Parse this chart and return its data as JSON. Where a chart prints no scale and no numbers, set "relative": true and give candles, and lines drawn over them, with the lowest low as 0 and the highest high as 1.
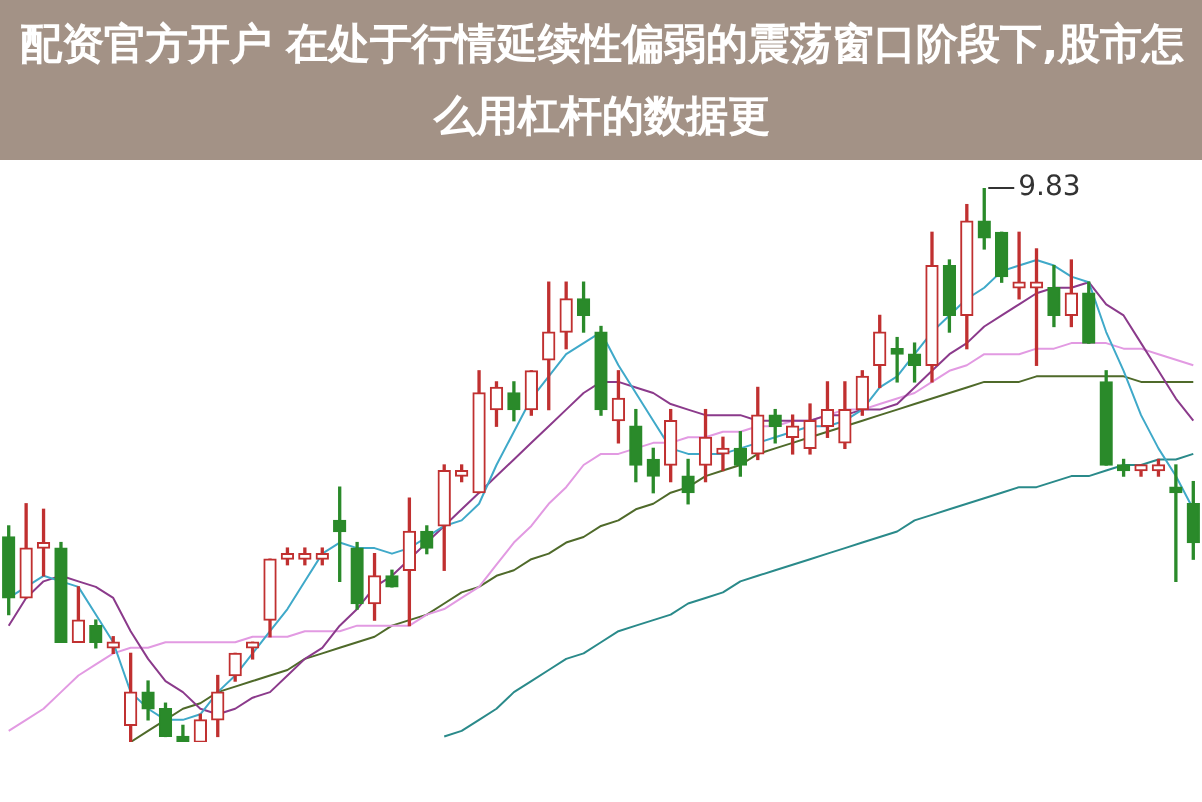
{
  "chart_data": {
    "type": "candlestick",
    "relative": true,
    "title": "配资官方开户 在处于行情延续性偏弱的震荡窗口阶段下,股市怎么用杠杆的数据更",
    "categories": [
      null,
      null,
      null,
      null,
      null,
      null,
      null,
      null,
      null,
      null,
      null,
      null,
      null,
      null,
      null,
      null,
      null,
      null,
      null,
      null,
      null,
      null,
      null,
      null,
      null,
      null,
      null,
      null,
      null,
      null,
      null,
      null,
      null,
      null,
      null,
      null,
      null,
      null,
      null,
      null,
      null,
      null,
      null,
      null,
      null,
      null,
      null,
      null,
      null,
      null,
      null,
      null,
      null,
      null,
      null,
      null,
      null,
      null,
      null,
      null,
      null,
      null,
      null,
      null,
      null,
      null,
      null,
      null,
      null
    ],
    "ohlc": [
      [
        0.37,
        0.39,
        0.23,
        0.26
      ],
      [
        0.26,
        0.43,
        0.26,
        0.35
      ],
      [
        0.35,
        0.42,
        0.3,
        0.36
      ],
      [
        0.35,
        0.36,
        0.18,
        0.18
      ],
      [
        0.18,
        0.28,
        0.18,
        0.22
      ],
      [
        0.21,
        0.22,
        0.17,
        0.18
      ],
      [
        0.17,
        0.19,
        0.16,
        0.18
      ],
      [
        0.03,
        0.16,
        0.0,
        0.09
      ],
      [
        0.09,
        0.11,
        0.04,
        0.06
      ],
      [
        0.06,
        0.07,
        0.01,
        0.01
      ],
      [
        0.01,
        0.03,
        0.0,
        0.0
      ],
      [
        0.0,
        0.05,
        0.0,
        0.04
      ],
      [
        0.04,
        0.12,
        0.01,
        0.09
      ],
      [
        0.12,
        0.16,
        0.11,
        0.16
      ],
      [
        0.17,
        0.18,
        0.15,
        0.18
      ],
      [
        0.22,
        0.33,
        0.19,
        0.33
      ],
      [
        0.33,
        0.35,
        0.32,
        0.34
      ],
      [
        0.33,
        0.35,
        0.32,
        0.34
      ],
      [
        0.33,
        0.35,
        0.32,
        0.34
      ],
      [
        0.4,
        0.46,
        0.29,
        0.38
      ],
      [
        0.35,
        0.36,
        0.24,
        0.25
      ],
      [
        0.25,
        0.34,
        0.22,
        0.3
      ],
      [
        0.3,
        0.31,
        0.28,
        0.28
      ],
      [
        0.31,
        0.44,
        0.21,
        0.38
      ],
      [
        0.38,
        0.39,
        0.34,
        0.35
      ],
      [
        0.39,
        0.5,
        0.31,
        0.49
      ],
      [
        0.48,
        0.5,
        0.47,
        0.49
      ],
      [
        0.45,
        0.67,
        0.45,
        0.63
      ],
      [
        0.6,
        0.65,
        0.57,
        0.64
      ],
      [
        0.63,
        0.65,
        0.58,
        0.6
      ],
      [
        0.6,
        0.67,
        0.59,
        0.67
      ],
      [
        0.69,
        0.83,
        0.6,
        0.74
      ],
      [
        0.74,
        0.83,
        0.71,
        0.8
      ],
      [
        0.8,
        0.83,
        0.74,
        0.77
      ],
      [
        0.74,
        0.75,
        0.59,
        0.6
      ],
      [
        0.58,
        0.67,
        0.54,
        0.62
      ],
      [
        0.57,
        0.6,
        0.47,
        0.5
      ],
      [
        0.51,
        0.53,
        0.45,
        0.48
      ],
      [
        0.5,
        0.6,
        0.47,
        0.58
      ],
      [
        0.48,
        0.51,
        0.43,
        0.45
      ],
      [
        0.5,
        0.6,
        0.47,
        0.55
      ],
      [
        0.52,
        0.55,
        0.49,
        0.53
      ],
      [
        0.53,
        0.56,
        0.48,
        0.5
      ],
      [
        0.52,
        0.64,
        0.51,
        0.59
      ],
      [
        0.59,
        0.6,
        0.54,
        0.57
      ],
      [
        0.55,
        0.59,
        0.52,
        0.57
      ],
      [
        0.53,
        0.61,
        0.52,
        0.58
      ],
      [
        0.57,
        0.65,
        0.55,
        0.6
      ],
      [
        0.54,
        0.65,
        0.53,
        0.6
      ],
      [
        0.6,
        0.67,
        0.59,
        0.66
      ],
      [
        0.68,
        0.77,
        0.64,
        0.74
      ],
      [
        0.71,
        0.73,
        0.65,
        0.7
      ],
      [
        0.7,
        0.72,
        0.65,
        0.68
      ],
      [
        0.68,
        0.92,
        0.65,
        0.86
      ],
      [
        0.86,
        0.87,
        0.74,
        0.77
      ],
      [
        0.77,
        0.97,
        0.71,
        0.94
      ],
      [
        0.94,
        1.0,
        0.89,
        0.91
      ],
      [
        0.92,
        0.92,
        0.83,
        0.84
      ],
      [
        0.82,
        0.92,
        0.8,
        0.83
      ],
      [
        0.82,
        0.89,
        0.68,
        0.83
      ],
      [
        0.82,
        0.86,
        0.75,
        0.77
      ],
      [
        0.77,
        0.87,
        0.75,
        0.81
      ],
      [
        0.81,
        0.83,
        0.72,
        0.72
      ],
      [
        0.65,
        0.67,
        0.5,
        0.5
      ],
      [
        0.5,
        0.51,
        0.48,
        0.49
      ],
      [
        0.49,
        0.5,
        0.48,
        0.5
      ],
      [
        0.49,
        0.51,
        0.48,
        0.5
      ],
      [
        0.46,
        0.5,
        0.29,
        0.45
      ],
      [
        0.43,
        0.47,
        0.33,
        0.36
      ]
    ],
    "colors": [
      "#2a8a2a",
      "#c03030",
      "#c03030",
      "#2a8a2a",
      "#c03030",
      "#2a8a2a",
      "#c03030",
      "#c03030",
      "#2a8a2a",
      "#2a8a2a",
      "#2a8a2a",
      "#c03030",
      "#c03030",
      "#c03030",
      "#c03030",
      "#c03030",
      "#c03030",
      "#c03030",
      "#c03030",
      "#2a8a2a",
      "#2a8a2a",
      "#c03030",
      "#2a8a2a",
      "#c03030",
      "#2a8a2a",
      "#c03030",
      "#c03030",
      "#c03030",
      "#c03030",
      "#2a8a2a",
      "#c03030",
      "#c03030",
      "#c03030",
      "#2a8a2a",
      "#2a8a2a",
      "#c03030",
      "#2a8a2a",
      "#2a8a2a",
      "#c03030",
      "#2a8a2a",
      "#c03030",
      "#c03030",
      "#2a8a2a",
      "#c03030",
      "#2a8a2a",
      "#c03030",
      "#c03030",
      "#c03030",
      "#c03030",
      "#c03030",
      "#c03030",
      "#2a8a2a",
      "#2a8a2a",
      "#c03030",
      "#2a8a2a",
      "#c03030",
      "#2a8a2a",
      "#2a8a2a",
      "#c03030",
      "#c03030",
      "#2a8a2a",
      "#c03030",
      "#2a8a2a",
      "#2a8a2a",
      "#2a8a2a",
      "#c03030",
      "#c03030",
      "#2a8a2a",
      "#2a8a2a"
    ],
    "series": [
      {
        "type": "line",
        "color": "#3fa9c9",
        "values": [
          0.26,
          0.28,
          0.3,
          0.29,
          0.28,
          0.23,
          0.18,
          0.09,
          0.06,
          0.04,
          0.04,
          0.05,
          0.09,
          0.12,
          0.16,
          0.2,
          0.24,
          0.29,
          0.34,
          0.36,
          0.35,
          0.35,
          0.34,
          0.35,
          0.37,
          0.39,
          0.4,
          0.43,
          0.5,
          0.56,
          0.62,
          0.66,
          0.7,
          0.72,
          0.74,
          0.68,
          0.63,
          0.58,
          0.53,
          0.52,
          0.52,
          0.52,
          0.53,
          0.54,
          0.55,
          0.56,
          0.57,
          0.57,
          0.58,
          0.6,
          0.64,
          0.66,
          0.7,
          0.74,
          0.77,
          0.8,
          0.82,
          0.85,
          0.86,
          0.87,
          0.86,
          0.84,
          0.83,
          0.74,
          0.67,
          0.59,
          0.53,
          0.48,
          0.42
        ]
      },
      {
        "type": "line",
        "color": "#8b3a8b",
        "values": [
          0.21,
          0.26,
          0.29,
          0.3,
          0.29,
          0.28,
          0.26,
          0.2,
          0.15,
          0.11,
          0.09,
          0.06,
          0.05,
          0.06,
          0.08,
          0.09,
          0.12,
          0.15,
          0.17,
          0.21,
          0.24,
          0.28,
          0.3,
          0.33,
          0.36,
          0.39,
          0.42,
          0.45,
          0.48,
          0.51,
          0.54,
          0.57,
          0.6,
          0.63,
          0.65,
          0.65,
          0.64,
          0.63,
          0.61,
          0.6,
          0.59,
          0.59,
          0.59,
          0.58,
          0.58,
          0.58,
          0.58,
          0.59,
          0.59,
          0.6,
          0.6,
          0.61,
          0.64,
          0.67,
          0.7,
          0.72,
          0.75,
          0.77,
          0.79,
          0.81,
          0.82,
          0.82,
          0.83,
          0.79,
          0.77,
          0.72,
          0.67,
          0.62,
          0.58
        ]
      },
      {
        "type": "line",
        "color": "#e29ae2",
        "values": [
          0.02,
          0.04,
          0.06,
          0.09,
          0.12,
          0.14,
          0.16,
          0.17,
          0.17,
          0.18,
          0.18,
          0.18,
          0.18,
          0.18,
          0.19,
          0.19,
          0.19,
          0.2,
          0.2,
          0.2,
          0.21,
          0.21,
          0.21,
          0.21,
          0.23,
          0.24,
          0.26,
          0.28,
          0.32,
          0.36,
          0.39,
          0.43,
          0.46,
          0.5,
          0.52,
          0.52,
          0.53,
          0.54,
          0.54,
          0.55,
          0.55,
          0.56,
          0.56,
          0.57,
          0.57,
          0.58,
          0.58,
          0.59,
          0.6,
          0.6,
          0.61,
          0.62,
          0.63,
          0.65,
          0.67,
          0.68,
          0.7,
          0.7,
          0.7,
          0.71,
          0.71,
          0.72,
          0.72,
          0.72,
          0.71,
          0.71,
          0.7,
          0.69,
          0.68
        ]
      },
      {
        "type": "line",
        "color": "#4f6a2a",
        "values": [
          null,
          null,
          null,
          null,
          null,
          null,
          null,
          0.0,
          0.02,
          0.04,
          0.06,
          0.07,
          0.09,
          0.1,
          0.11,
          0.12,
          0.13,
          0.15,
          0.16,
          0.17,
          0.18,
          0.19,
          0.21,
          0.22,
          0.23,
          0.25,
          0.27,
          0.28,
          0.3,
          0.31,
          0.33,
          0.34,
          0.36,
          0.37,
          0.39,
          0.4,
          0.42,
          0.43,
          0.45,
          0.46,
          0.48,
          0.49,
          0.5,
          0.52,
          0.53,
          0.54,
          0.55,
          0.56,
          0.57,
          0.58,
          0.59,
          0.6,
          0.61,
          0.62,
          0.63,
          0.64,
          0.65,
          0.65,
          0.65,
          0.66,
          0.66,
          0.66,
          0.66,
          0.66,
          0.66,
          0.65,
          0.65,
          0.65,
          0.65
        ]
      },
      {
        "type": "line",
        "color": "#2a8a8a",
        "values": [
          null,
          null,
          null,
          null,
          null,
          null,
          null,
          null,
          null,
          null,
          null,
          null,
          null,
          null,
          null,
          null,
          null,
          null,
          null,
          null,
          null,
          null,
          null,
          null,
          null,
          0.01,
          0.02,
          0.04,
          0.06,
          0.09,
          0.11,
          0.13,
          0.15,
          0.16,
          0.18,
          0.2,
          0.21,
          0.22,
          0.23,
          0.25,
          0.26,
          0.27,
          0.29,
          0.3,
          0.31,
          0.32,
          0.33,
          0.34,
          0.35,
          0.36,
          0.37,
          0.38,
          0.4,
          0.41,
          0.42,
          0.43,
          0.44,
          0.45,
          0.46,
          0.46,
          0.47,
          0.48,
          0.48,
          0.49,
          0.5,
          0.5,
          0.51,
          0.51,
          0.52
        ]
      }
    ],
    "annotations": [
      "9.83"
    ]
  }
}
